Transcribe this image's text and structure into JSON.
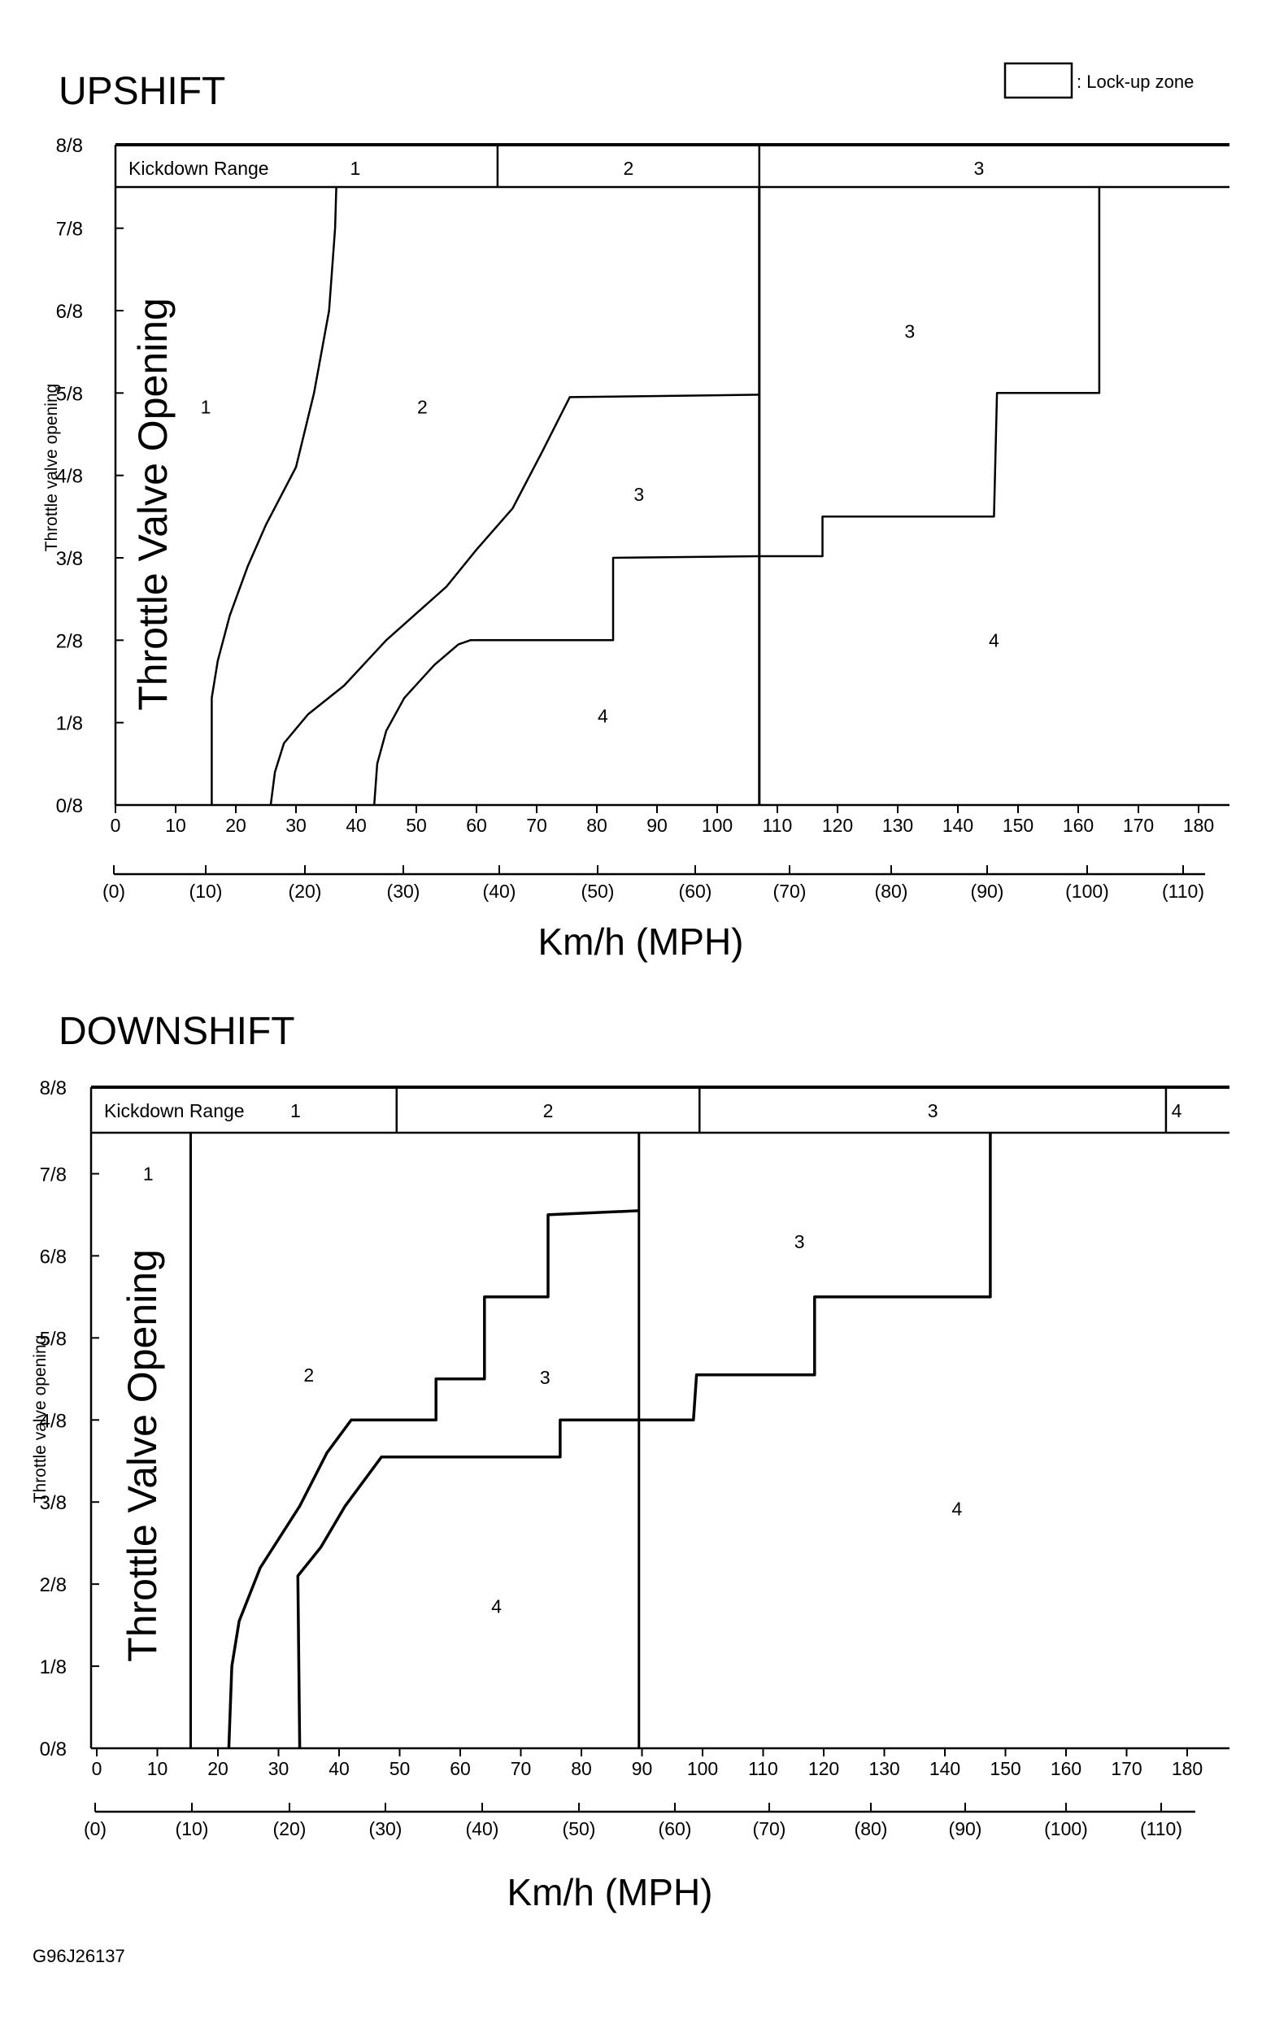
{
  "legend": {
    "lockup_label": ": Lock-up zone"
  },
  "footer": {
    "figure_code": "G96J26137"
  },
  "chart_data": [
    {
      "type": "line",
      "title": "UPSHIFT",
      "ylabel_large": "Throttle Valve Opening",
      "ylabel_small": "Throttle valve opening",
      "xlabel": "Km/h (MPH)",
      "xlim": [
        0,
        180
      ],
      "x_ticks": [
        "0",
        "10",
        "20",
        "30",
        "40",
        "50",
        "60",
        "70",
        "80",
        "90",
        "100",
        "110",
        "120",
        "130",
        "140",
        "150",
        "160",
        "170",
        "180"
      ],
      "mph_ticks": [
        "(0)",
        "(10)",
        "(20)",
        "(30)",
        "(40)",
        "(50)",
        "(60)",
        "(70)",
        "(80)",
        "(90)",
        "(100)",
        "(110)"
      ],
      "y_ticks": [
        "0/8",
        "1/8",
        "2/8",
        "3/8",
        "4/8",
        "5/8",
        "6/8",
        "7/8",
        "8/8"
      ],
      "kickdown": {
        "label": "Kickdown Range",
        "segments": [
          {
            "label": "1",
            "from": 0,
            "to": 63.5
          },
          {
            "label": "2",
            "from": 63.5,
            "to": 107
          },
          {
            "label": "3",
            "from": 107,
            "to": 180
          }
        ]
      },
      "vlines": [
        107
      ],
      "zone_labels": [
        {
          "text": "1",
          "x": 15,
          "y": 4.83
        },
        {
          "text": "2",
          "x": 51,
          "y": 4.83
        },
        {
          "text": "3",
          "x": 87,
          "y": 3.77
        },
        {
          "text": "4",
          "x": 81,
          "y": 1.08
        },
        {
          "text": "3",
          "x": 132,
          "y": 5.75
        },
        {
          "text": "4",
          "x": 146,
          "y": 2.0
        }
      ],
      "series": [
        {
          "points": [
            [
              16,
              0
            ],
            [
              16,
              1.3
            ],
            [
              17,
              1.75
            ],
            [
              19,
              2.3
            ],
            [
              22,
              2.9
            ],
            [
              25,
              3.4
            ],
            [
              30,
              4.1
            ],
            [
              33,
              5
            ],
            [
              35.5,
              6
            ],
            [
              36.5,
              7
            ],
            [
              36.7,
              7.5
            ]
          ]
        },
        {
          "points": [
            [
              25.8,
              0
            ],
            [
              26.5,
              0.4
            ],
            [
              28,
              0.75
            ],
            [
              32,
              1.1
            ],
            [
              38,
              1.45
            ],
            [
              45,
              2
            ],
            [
              55,
              2.65
            ],
            [
              60,
              3.1
            ],
            [
              66,
              3.6
            ],
            [
              71,
              4.3
            ],
            [
              75.5,
              4.95
            ],
            [
              107,
              4.98
            ]
          ]
        },
        {
          "points": [
            [
              43,
              0
            ],
            [
              43.5,
              0.5
            ],
            [
              45,
              0.9
            ],
            [
              48,
              1.3
            ],
            [
              53,
              1.7
            ],
            [
              57,
              1.95
            ],
            [
              59,
              2.0
            ],
            [
              82.7,
              2.0
            ],
            [
              82.7,
              3.0
            ],
            [
              107,
              3.02
            ],
            [
              117.5,
              3.02
            ],
            [
              117.5,
              3.5
            ],
            [
              146,
              3.5
            ],
            [
              146.5,
              5
            ],
            [
              163.5,
              5
            ],
            [
              163.5,
              7.5
            ]
          ]
        }
      ]
    },
    {
      "type": "line",
      "title": "DOWNSHIFT",
      "ylabel_large": "Throttle Valve Opening",
      "ylabel_small": "Throttle valve opening",
      "xlabel": "Km/h (MPH)",
      "xlim": [
        0,
        180
      ],
      "x_ticks": [
        "0",
        "10",
        "20",
        "30",
        "40",
        "50",
        "60",
        "70",
        "80",
        "90",
        "100",
        "110",
        "120",
        "130",
        "140",
        "150",
        "160",
        "170",
        "180"
      ],
      "mph_ticks": [
        "(0)",
        "(10)",
        "(20)",
        "(30)",
        "(40)",
        "(50)",
        "(60)",
        "(70)",
        "(80)",
        "(90)",
        "(100)",
        "(110)"
      ],
      "y_ticks": [
        "0/8",
        "1/8",
        "2/8",
        "3/8",
        "4/8",
        "5/8",
        "6/8",
        "7/8",
        "8/8"
      ],
      "kickdown": {
        "label": "Kickdown Range",
        "segments": [
          {
            "label": "1",
            "from": 0,
            "to": 49.5
          },
          {
            "label": "2",
            "from": 49.5,
            "to": 99.5
          },
          {
            "label": "3",
            "from": 99.5,
            "to": 176.5
          },
          {
            "label": "4",
            "from": 176.5,
            "to": 180
          }
        ]
      },
      "vlines": [
        15.5,
        89.5
      ],
      "zone_labels": [
        {
          "text": "1",
          "x": 8.5,
          "y": 7.0
        },
        {
          "text": "2",
          "x": 35,
          "y": 4.55
        },
        {
          "text": "3",
          "x": 74,
          "y": 4.52
        },
        {
          "text": "4",
          "x": 66,
          "y": 1.73
        },
        {
          "text": "3",
          "x": 116,
          "y": 6.17
        },
        {
          "text": "4",
          "x": 142,
          "y": 2.92
        }
      ],
      "series": [
        {
          "points": [
            [
              21.8,
              0
            ],
            [
              22.3,
              1
            ],
            [
              23.5,
              1.55
            ],
            [
              27,
              2.2
            ],
            [
              33.5,
              2.95
            ],
            [
              38,
              3.6
            ],
            [
              42,
              4.0
            ],
            [
              56,
              4.0
            ],
            [
              56,
              4.5
            ],
            [
              64,
              4.5
            ],
            [
              64,
              5.5
            ],
            [
              74.5,
              5.5
            ],
            [
              74.5,
              6.5
            ],
            [
              89.5,
              6.55
            ]
          ]
        },
        {
          "points": [
            [
              33.5,
              0
            ],
            [
              33.2,
              2.1
            ],
            [
              37,
              2.45
            ],
            [
              41,
              2.95
            ],
            [
              47,
              3.55
            ],
            [
              52,
              3.55
            ],
            [
              76.5,
              3.55
            ],
            [
              76.5,
              4.0
            ],
            [
              98.5,
              4.0
            ],
            [
              99,
              4.55
            ],
            [
              118.5,
              4.55
            ],
            [
              118.5,
              5.5
            ],
            [
              147.5,
              5.5
            ],
            [
              147.5,
              7.5
            ]
          ]
        }
      ]
    }
  ]
}
